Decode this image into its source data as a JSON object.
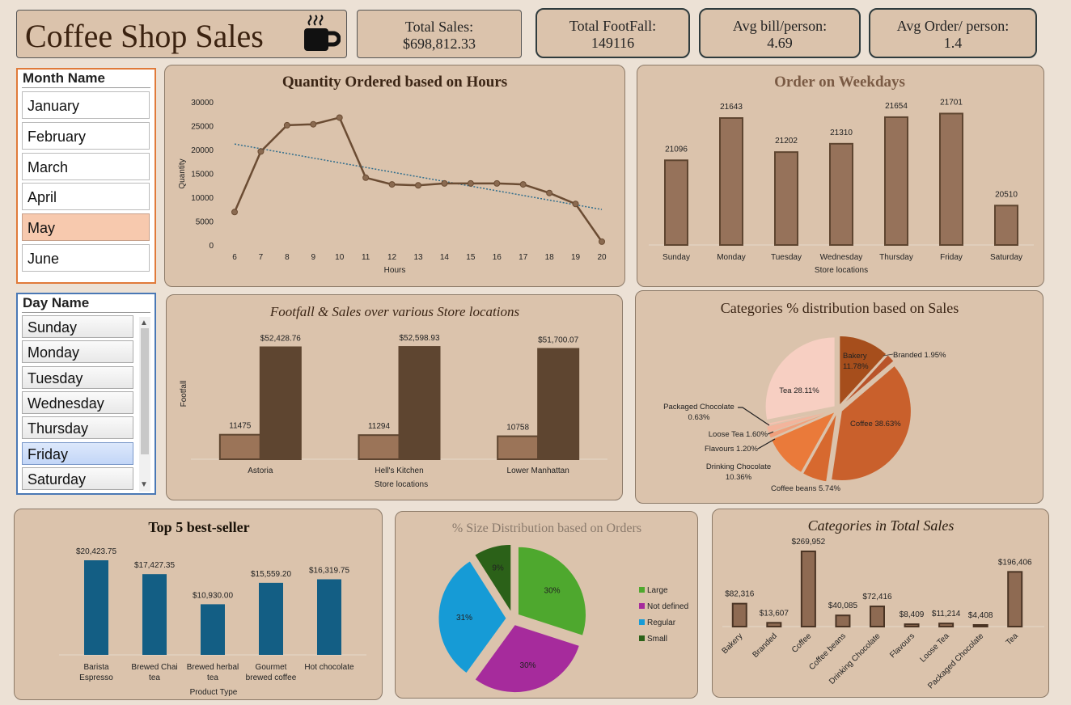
{
  "header": {
    "title": "Coffee Shop Sales",
    "icon": "coffee-cup-icon"
  },
  "kpis": {
    "total_sales": {
      "label": "Total Sales:",
      "value": "$698,812.33"
    },
    "total_footfall": {
      "label": "Total FootFall:",
      "value": "149116"
    },
    "avg_bill": {
      "label": "Avg bill/person:",
      "value": "4.69"
    },
    "avg_order": {
      "label": "Avg Order/ person:",
      "value": "1.4"
    }
  },
  "month_slicer": {
    "title": "Month Name",
    "items": [
      "January",
      "February",
      "March",
      "April",
      "May",
      "June"
    ],
    "selected": "May"
  },
  "day_slicer": {
    "title": "Day Name",
    "items": [
      "Sunday",
      "Monday",
      "Tuesday",
      "Wednesday",
      "Thursday",
      "Friday",
      "Saturday"
    ],
    "selected": "Friday"
  },
  "chart_data": [
    {
      "id": "hours",
      "type": "line",
      "title": "Quantity Ordered based on Hours",
      "xlabel": "Hours",
      "ylabel": "Quantity",
      "x": [
        6,
        7,
        8,
        9,
        10,
        11,
        12,
        13,
        14,
        15,
        16,
        17,
        18,
        19,
        20
      ],
      "values": [
        6900,
        19600,
        25100,
        25300,
        26700,
        14100,
        12700,
        12500,
        12900,
        12900,
        12900,
        12700,
        10900,
        8600,
        700
      ],
      "ylim": [
        0,
        30000
      ],
      "yticks": [
        0,
        5000,
        10000,
        15000,
        20000,
        25000,
        30000
      ],
      "trendline": "linear",
      "color": "#6b4c33"
    },
    {
      "id": "weekdays",
      "type": "bar",
      "title": "Order on Weekdays",
      "xlabel": "Store locations",
      "categories": [
        "Sunday",
        "Monday",
        "Tuesday",
        "Wednesday",
        "Thursday",
        "Friday",
        "Saturday"
      ],
      "values": [
        21096,
        21643,
        21202,
        21310,
        21654,
        21701,
        20510
      ],
      "color": "#96725a"
    },
    {
      "id": "stores",
      "type": "bar",
      "title": "Footfall  & Sales over various Store locations",
      "xlabel": "Store locations",
      "ylabel": "Footfall",
      "categories": [
        "Astoria",
        "Hell's Kitchen",
        "Lower Manhattan"
      ],
      "series": [
        {
          "values": [
            11475,
            11294,
            10758
          ],
          "labels": [
            "11475",
            "11294",
            "10758"
          ],
          "color": "#9b7458"
        },
        {
          "values": [
            52428.76,
            52598.93,
            51700.07
          ],
          "labels": [
            "$52,428.76",
            "$52,598.93",
            "$51,700.07"
          ],
          "color": "#5e4530"
        }
      ]
    },
    {
      "id": "categories_pie",
      "type": "pie",
      "title": "Categories % distribution based on Sales",
      "categories": [
        "Bakery",
        "Branded",
        "Coffee",
        "Coffee beans",
        "Drinking Chocolate",
        "Flavours",
        "Loose Tea",
        "Packaged Chocolate",
        "Tea"
      ],
      "values": [
        11.78,
        1.95,
        38.63,
        5.74,
        10.36,
        1.2,
        1.6,
        0.63,
        28.11
      ],
      "labels": [
        "Bakery 11.78%",
        "Branded 1.95%",
        "Coffee 38.63%",
        "Coffee beans 5.74%",
        "Drinking Chocolate 10.36%",
        "Flavours 1.20%",
        "Loose Tea 1.60%",
        "Packaged Chocolate 0.63%",
        "Tea 28.11%"
      ],
      "colors": [
        "#a64e1c",
        "#b9542a",
        "#c9602c",
        "#d7692f",
        "#ea7a3a",
        "#f0a07c",
        "#f3b49c",
        "#f5c2b0",
        "#f7cfc2"
      ]
    },
    {
      "id": "top5",
      "type": "bar",
      "title": "Top 5 best-seller",
      "xlabel": "Product Type",
      "categories": [
        "Barista Espresso",
        "Brewed Chai tea",
        "Brewed herbal tea",
        "Gourmet brewed coffee",
        "Hot chocolate"
      ],
      "values": [
        20423.75,
        17427.35,
        10930.0,
        15559.2,
        16319.75
      ],
      "labels": [
        "$20,423.75",
        "$17,427.35",
        "$10,930.00",
        "$15,559.20",
        "$16,319.75"
      ],
      "color": "#135e84"
    },
    {
      "id": "size_pie",
      "type": "pie",
      "title": "% Size Distribution based on Orders",
      "categories": [
        "Large",
        "Not defined",
        "Regular",
        "Small"
      ],
      "values": [
        30,
        30,
        31,
        9
      ],
      "labels": [
        "30%",
        "30%",
        "31%",
        "9%"
      ],
      "colors": [
        "#4ea82e",
        "#a62b9c",
        "#169bd6",
        "#2b6118"
      ]
    },
    {
      "id": "cat_sales",
      "type": "bar",
      "title": "Categories in Total Sales",
      "categories": [
        "Bakery",
        "Branded",
        "Coffee",
        "Coffee beans",
        "Drinking Chocolate",
        "Flavours",
        "Loose Tea",
        "Packaged Chocolate",
        "Tea"
      ],
      "values": [
        82316,
        13607,
        269952,
        40085,
        72416,
        8409,
        11214,
        4408,
        196406
      ],
      "labels": [
        "$82,316",
        "$13,607",
        "$269,952",
        "$40,085",
        "$72,416",
        "$8,409",
        "$11,214",
        "$4,408",
        "$196,406"
      ],
      "color": "#8e6a52"
    }
  ]
}
